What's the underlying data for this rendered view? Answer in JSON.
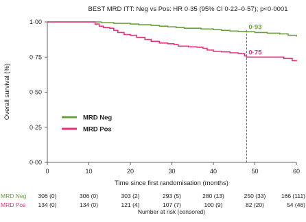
{
  "chart_data": {
    "type": "line",
    "title": "BEST MRD ITT: Neg vs Pos: HR 0·35 (95% CI 0·22–0·57); p<0·0001",
    "xlabel": "Time since first randomisation (months)",
    "ylabel": "Overall survival (%)",
    "xlim": [
      0,
      60
    ],
    "ylim": [
      0,
      1
    ],
    "x_ticks": [
      0,
      10,
      20,
      30,
      40,
      50,
      60
    ],
    "x_tick_labels": [
      "0",
      "10",
      "20",
      "30",
      "40",
      "50",
      "60"
    ],
    "y_ticks": [
      0,
      0.25,
      0.5,
      0.75,
      1
    ],
    "y_tick_labels": [
      "0·00",
      "0·25",
      "0·50",
      "0·75",
      "1·00"
    ],
    "grid": false,
    "legend_position": "left-middle",
    "reference_x": 48,
    "series": [
      {
        "name": "MRD Neg",
        "color": "#6aa03a",
        "annotation": "0·93",
        "annotation_x": 48,
        "annotation_y": 0.93,
        "points": [
          [
            0,
            1
          ],
          [
            8,
            1
          ],
          [
            13,
            0.995
          ],
          [
            16,
            0.99
          ],
          [
            20,
            0.985
          ],
          [
            22,
            0.98
          ],
          [
            25,
            0.975
          ],
          [
            27,
            0.97
          ],
          [
            29,
            0.965
          ],
          [
            31,
            0.96
          ],
          [
            33,
            0.955
          ],
          [
            35,
            0.955
          ],
          [
            37,
            0.95
          ],
          [
            40,
            0.945
          ],
          [
            42,
            0.94
          ],
          [
            44,
            0.935
          ],
          [
            46,
            0.932
          ],
          [
            48,
            0.93
          ],
          [
            50,
            0.925
          ],
          [
            53,
            0.92
          ],
          [
            56,
            0.915
          ],
          [
            58,
            0.905
          ],
          [
            60,
            0.895
          ]
        ]
      },
      {
        "name": "MRD Pos",
        "color": "#e8327c",
        "annotation": "0·75",
        "annotation_x": 48,
        "annotation_y": 0.75,
        "points": [
          [
            0,
            1
          ],
          [
            11,
            1
          ],
          [
            11.5,
            0.985
          ],
          [
            12.5,
            0.97
          ],
          [
            13.5,
            0.96
          ],
          [
            15,
            0.955
          ],
          [
            16,
            0.94
          ],
          [
            17,
            0.925
          ],
          [
            18.5,
            0.91
          ],
          [
            20,
            0.905
          ],
          [
            21.5,
            0.89
          ],
          [
            23.5,
            0.875
          ],
          [
            25,
            0.862
          ],
          [
            27,
            0.85
          ],
          [
            29,
            0.845
          ],
          [
            30.5,
            0.84
          ],
          [
            31.5,
            0.828
          ],
          [
            34,
            0.823
          ],
          [
            36,
            0.82
          ],
          [
            37.5,
            0.812
          ],
          [
            38.5,
            0.8
          ],
          [
            40,
            0.79
          ],
          [
            42,
            0.787
          ],
          [
            44,
            0.78
          ],
          [
            46,
            0.775
          ],
          [
            47.5,
            0.758
          ],
          [
            48,
            0.75
          ],
          [
            50,
            0.75
          ],
          [
            55,
            0.75
          ],
          [
            57,
            0.74
          ],
          [
            59,
            0.725
          ],
          [
            60,
            0.72
          ]
        ]
      }
    ],
    "risk_table": {
      "label": "Number at risk (censored)",
      "times": [
        0,
        10,
        20,
        30,
        40,
        50,
        60
      ],
      "rows": [
        {
          "name": "MRD Neg",
          "color": "#6aa03a",
          "values": [
            "306 (0)",
            "306 (0)",
            "303 (2)",
            "293 (5)",
            "280 (13)",
            "250 (33)",
            "166 (111)"
          ]
        },
        {
          "name": "MRD Pos",
          "color": "#e8327c",
          "values": [
            "134 (0)",
            "134 (0)",
            "121 (4)",
            "107 (7)",
            "100 (9)",
            "82 (20)",
            "54 (46)"
          ]
        }
      ]
    }
  }
}
